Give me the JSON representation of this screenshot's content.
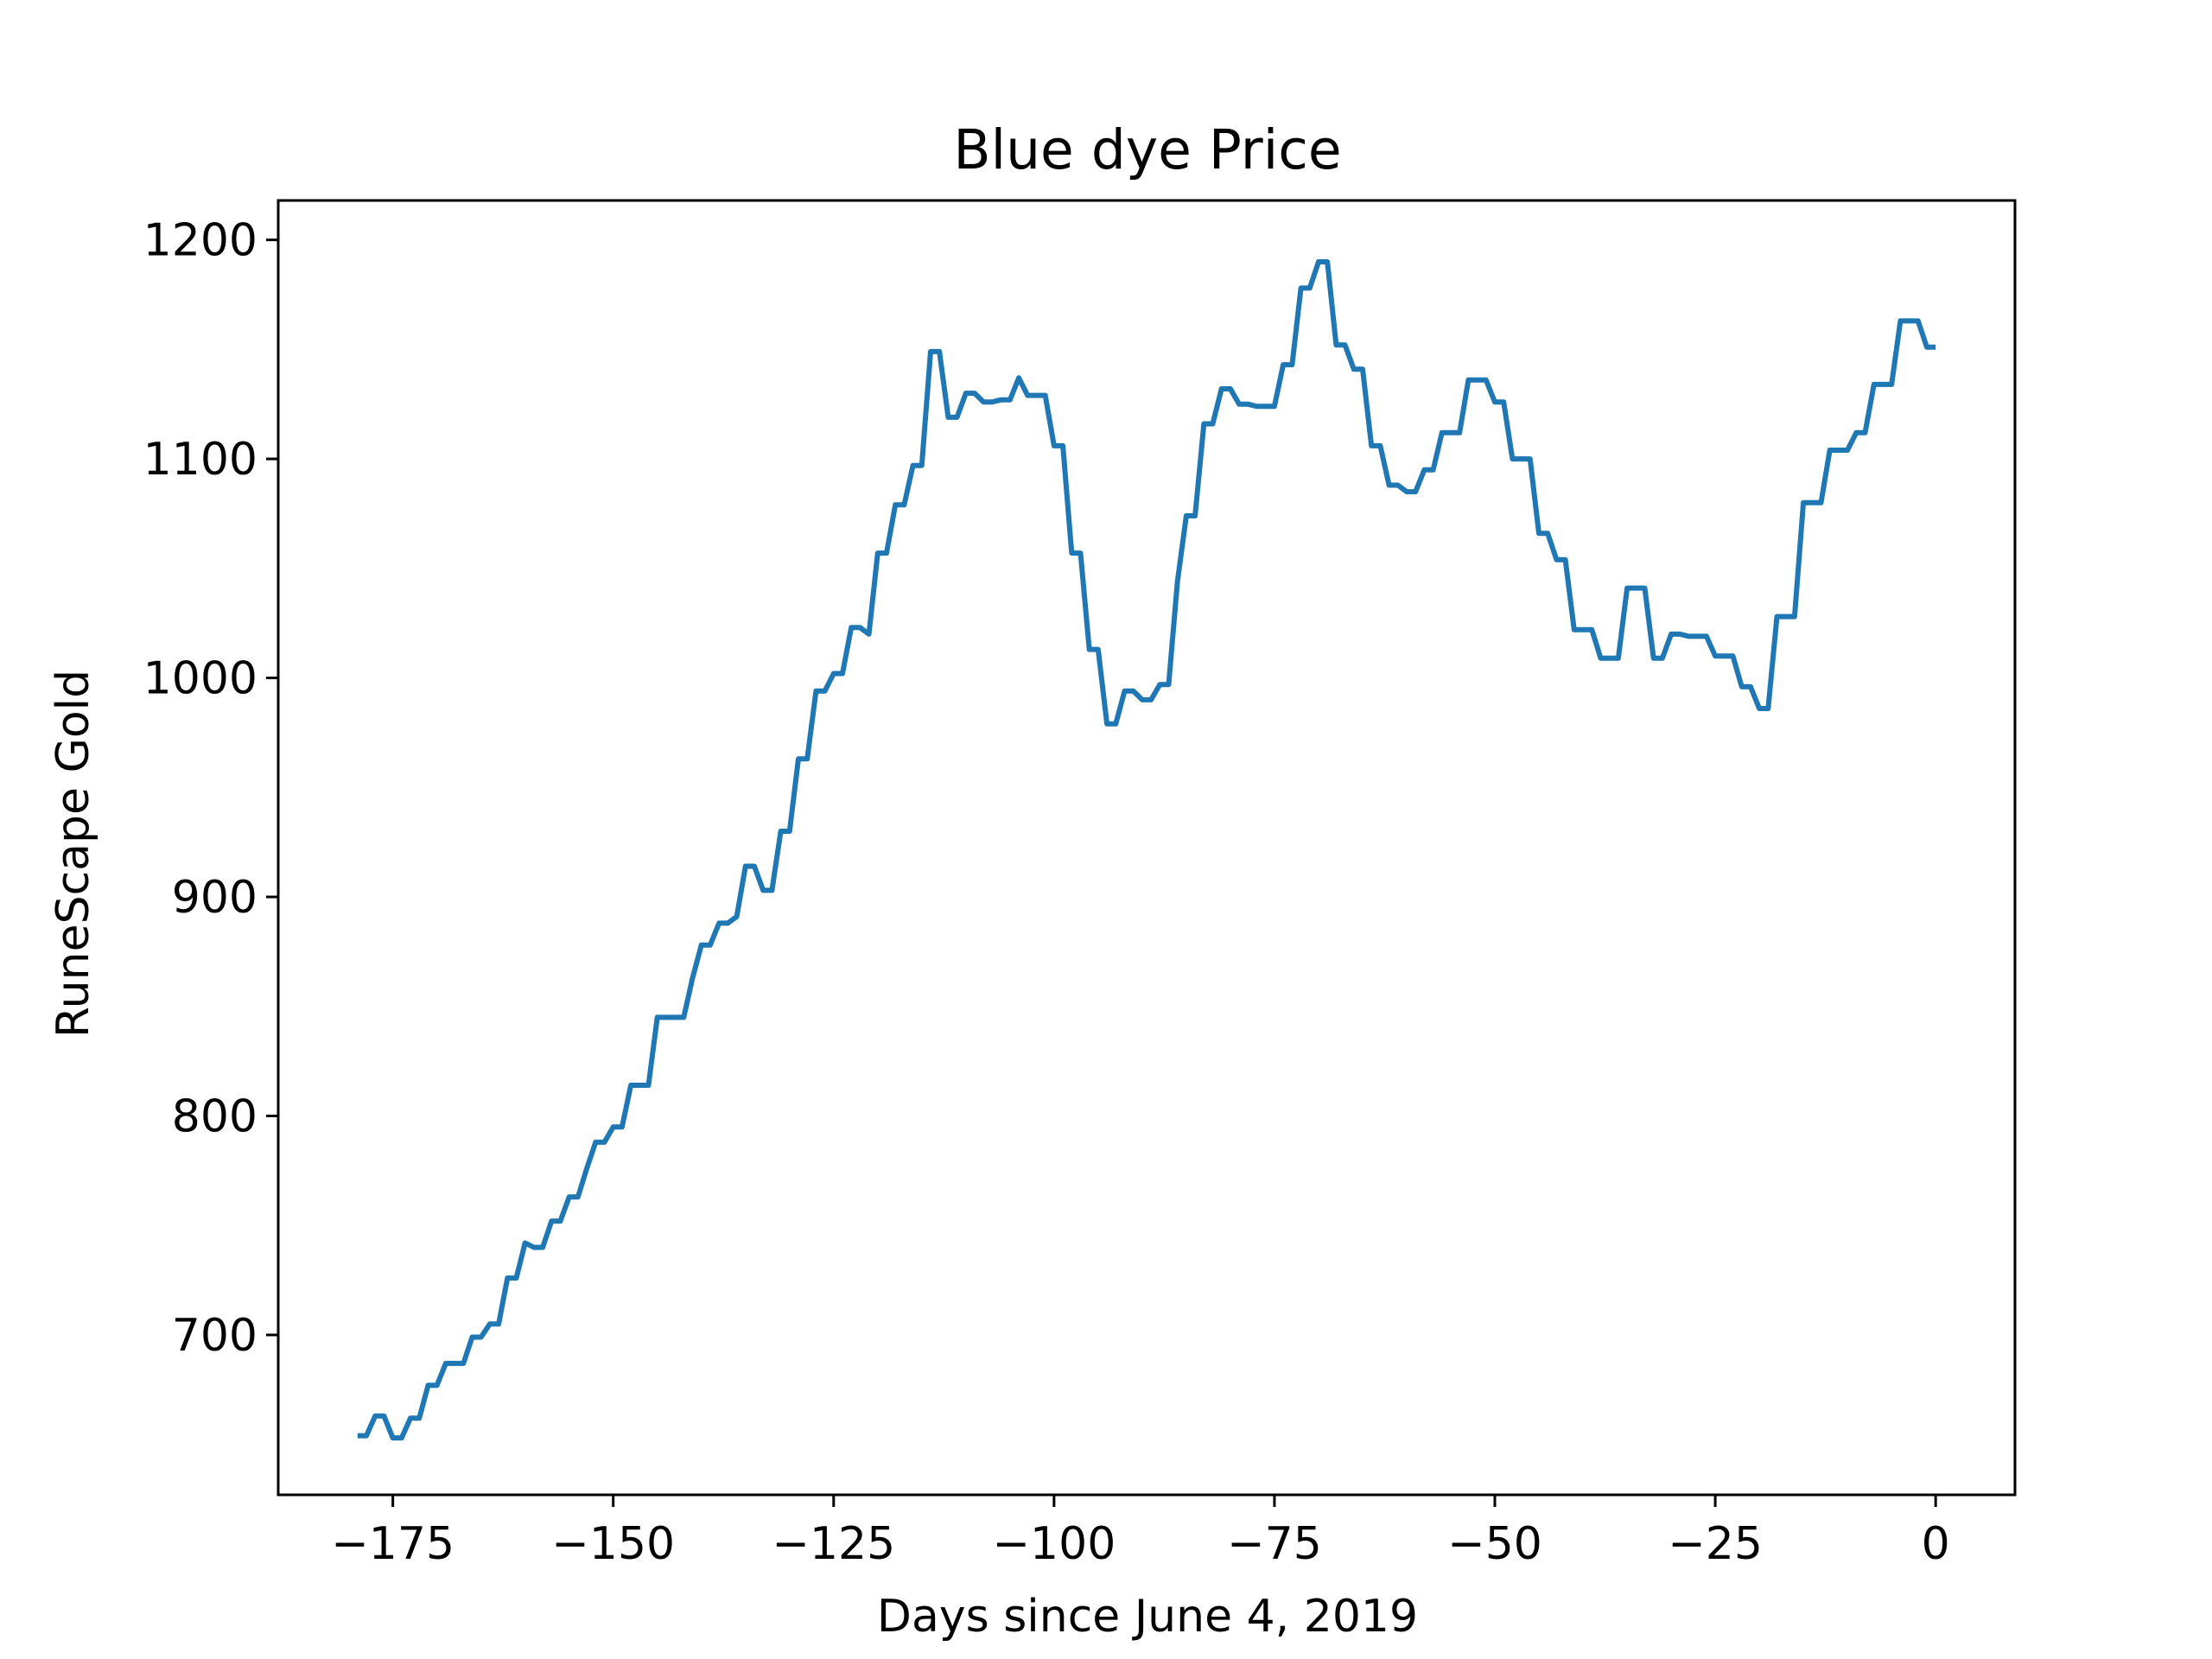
{
  "chart_data": {
    "type": "line",
    "title": "Blue dye Price",
    "xlabel": "Days since June 4, 2019",
    "ylabel": "RuneScape Gold",
    "xlim": [
      -188,
      9
    ],
    "ylim": [
      627,
      1218
    ],
    "x_ticks": [
      -175,
      -150,
      -125,
      -100,
      -75,
      -50,
      -25,
      0
    ],
    "x_tick_labels": [
      "−175",
      "−150",
      "−125",
      "−100",
      "−75",
      "−50",
      "−25",
      "0"
    ],
    "y_ticks": [
      700,
      800,
      900,
      1000,
      1100,
      1200
    ],
    "y_tick_labels": [
      "700",
      "800",
      "900",
      "1000",
      "1100",
      "1200"
    ],
    "grid": false,
    "line_color": "#1f77b4",
    "series": [
      {
        "points": [
          [
            -179,
            654
          ],
          [
            -178,
            654
          ],
          [
            -177,
            663
          ],
          [
            -176,
            663
          ],
          [
            -175,
            653
          ],
          [
            -174,
            653
          ],
          [
            -173,
            662
          ],
          [
            -172,
            662
          ],
          [
            -171,
            677
          ],
          [
            -170,
            677
          ],
          [
            -169,
            687
          ],
          [
            -168,
            687
          ],
          [
            -167,
            687
          ],
          [
            -166,
            699
          ],
          [
            -165,
            699
          ],
          [
            -164,
            705
          ],
          [
            -163,
            705
          ],
          [
            -162,
            726
          ],
          [
            -161,
            726
          ],
          [
            -160,
            742
          ],
          [
            -159,
            740
          ],
          [
            -158,
            740
          ],
          [
            -157,
            752
          ],
          [
            -156,
            752
          ],
          [
            -155,
            763
          ],
          [
            -154,
            763
          ],
          [
            -153,
            776
          ],
          [
            -152,
            788
          ],
          [
            -151,
            788
          ],
          [
            -150,
            795
          ],
          [
            -149,
            795
          ],
          [
            -148,
            814
          ],
          [
            -147,
            814
          ],
          [
            -146,
            814
          ],
          [
            -145,
            845
          ],
          [
            -144,
            845
          ],
          [
            -143,
            845
          ],
          [
            -142,
            845
          ],
          [
            -141,
            863
          ],
          [
            -140,
            878
          ],
          [
            -139,
            878
          ],
          [
            -138,
            888
          ],
          [
            -137,
            888
          ],
          [
            -136,
            891
          ],
          [
            -135,
            914
          ],
          [
            -134,
            914
          ],
          [
            -133,
            903
          ],
          [
            -132,
            903
          ],
          [
            -131,
            930
          ],
          [
            -130,
            930
          ],
          [
            -129,
            963
          ],
          [
            -128,
            963
          ],
          [
            -127,
            994
          ],
          [
            -126,
            994
          ],
          [
            -125,
            1002
          ],
          [
            -124,
            1002
          ],
          [
            -123,
            1023
          ],
          [
            -122,
            1023
          ],
          [
            -121,
            1020
          ],
          [
            -120,
            1057
          ],
          [
            -119,
            1057
          ],
          [
            -118,
            1079
          ],
          [
            -117,
            1079
          ],
          [
            -116,
            1097
          ],
          [
            -115,
            1097
          ],
          [
            -114,
            1149
          ],
          [
            -113,
            1149
          ],
          [
            -112,
            1119
          ],
          [
            -111,
            1119
          ],
          [
            -110,
            1130
          ],
          [
            -109,
            1130
          ],
          [
            -108,
            1126
          ],
          [
            -107,
            1126
          ],
          [
            -106,
            1127
          ],
          [
            -105,
            1127
          ],
          [
            -104,
            1137
          ],
          [
            -103,
            1129
          ],
          [
            -102,
            1129
          ],
          [
            -101,
            1129
          ],
          [
            -100,
            1106
          ],
          [
            -99,
            1106
          ],
          [
            -98,
            1057
          ],
          [
            -97,
            1057
          ],
          [
            -96,
            1013
          ],
          [
            -95,
            1013
          ],
          [
            -94,
            979
          ],
          [
            -93,
            979
          ],
          [
            -92,
            994
          ],
          [
            -91,
            994
          ],
          [
            -90,
            990
          ],
          [
            -89,
            990
          ],
          [
            -88,
            997
          ],
          [
            -87,
            997
          ],
          [
            -86,
            1044
          ],
          [
            -85,
            1074
          ],
          [
            -84,
            1074
          ],
          [
            -83,
            1116
          ],
          [
            -82,
            1116
          ],
          [
            -81,
            1132
          ],
          [
            -80,
            1132
          ],
          [
            -79,
            1125
          ],
          [
            -78,
            1125
          ],
          [
            -77,
            1124
          ],
          [
            -76,
            1124
          ],
          [
            -75,
            1124
          ],
          [
            -74,
            1143
          ],
          [
            -73,
            1143
          ],
          [
            -72,
            1178
          ],
          [
            -71,
            1178
          ],
          [
            -70,
            1190
          ],
          [
            -69,
            1190
          ],
          [
            -68,
            1152
          ],
          [
            -67,
            1152
          ],
          [
            -66,
            1141
          ],
          [
            -65,
            1141
          ],
          [
            -64,
            1106
          ],
          [
            -63,
            1106
          ],
          [
            -62,
            1088
          ],
          [
            -61,
            1088
          ],
          [
            -60,
            1085
          ],
          [
            -59,
            1085
          ],
          [
            -58,
            1095
          ],
          [
            -57,
            1095
          ],
          [
            -56,
            1112
          ],
          [
            -55,
            1112
          ],
          [
            -54,
            1112
          ],
          [
            -53,
            1136
          ],
          [
            -52,
            1136
          ],
          [
            -51,
            1136
          ],
          [
            -50,
            1126
          ],
          [
            -49,
            1126
          ],
          [
            -48,
            1100
          ],
          [
            -47,
            1100
          ],
          [
            -46,
            1100
          ],
          [
            -45,
            1066
          ],
          [
            -44,
            1066
          ],
          [
            -43,
            1054
          ],
          [
            -42,
            1054
          ],
          [
            -41,
            1022
          ],
          [
            -40,
            1022
          ],
          [
            -39,
            1022
          ],
          [
            -38,
            1009
          ],
          [
            -37,
            1009
          ],
          [
            -36,
            1009
          ],
          [
            -35,
            1041
          ],
          [
            -34,
            1041
          ],
          [
            -33,
            1041
          ],
          [
            -32,
            1009
          ],
          [
            -31,
            1009
          ],
          [
            -30,
            1020
          ],
          [
            -29,
            1020
          ],
          [
            -28,
            1019
          ],
          [
            -27,
            1019
          ],
          [
            -26,
            1019
          ],
          [
            -25,
            1010
          ],
          [
            -24,
            1010
          ],
          [
            -23,
            1010
          ],
          [
            -22,
            996
          ],
          [
            -21,
            996
          ],
          [
            -20,
            986
          ],
          [
            -19,
            986
          ],
          [
            -18,
            1028
          ],
          [
            -17,
            1028
          ],
          [
            -16,
            1028
          ],
          [
            -15,
            1080
          ],
          [
            -14,
            1080
          ],
          [
            -13,
            1080
          ],
          [
            -12,
            1104
          ],
          [
            -11,
            1104
          ],
          [
            -10,
            1104
          ],
          [
            -9,
            1112
          ],
          [
            -8,
            1112
          ],
          [
            -7,
            1134
          ],
          [
            -6,
            1134
          ],
          [
            -5,
            1134
          ],
          [
            -4,
            1163
          ],
          [
            -3,
            1163
          ],
          [
            -2,
            1163
          ],
          [
            -1,
            1151
          ],
          [
            0,
            1151
          ]
        ]
      }
    ]
  }
}
